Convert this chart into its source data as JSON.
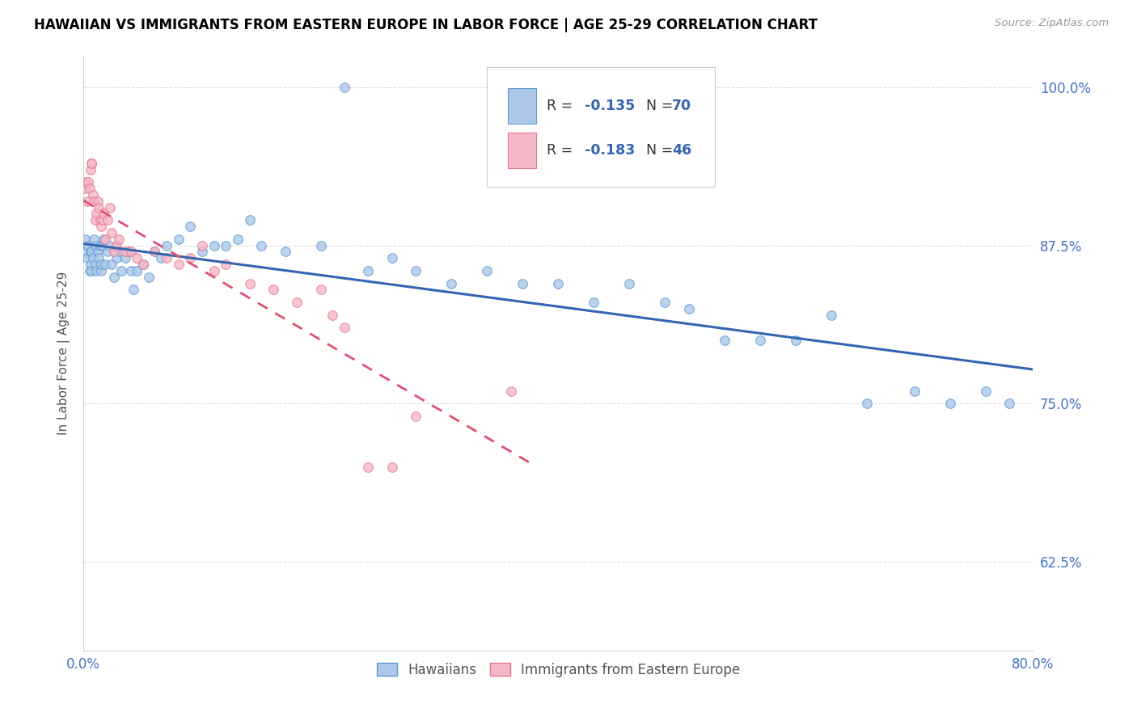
{
  "title": "HAWAIIAN VS IMMIGRANTS FROM EASTERN EUROPE IN LABOR FORCE | AGE 25-29 CORRELATION CHART",
  "source": "Source: ZipAtlas.com",
  "ylabel": "In Labor Force | Age 25-29",
  "xlim": [
    0.0,
    0.8
  ],
  "ylim": [
    0.555,
    1.025
  ],
  "xtick_positions": [
    0.0,
    0.1,
    0.2,
    0.3,
    0.4,
    0.5,
    0.6,
    0.7,
    0.8
  ],
  "xticklabels": [
    "0.0%",
    "",
    "",
    "",
    "",
    "",
    "",
    "",
    "80.0%"
  ],
  "ytick_positions": [
    0.625,
    0.75,
    0.875,
    1.0
  ],
  "ytick_labels": [
    "62.5%",
    "75.0%",
    "87.5%",
    "100.0%"
  ],
  "hawaiians_color": "#adc8e8",
  "eastern_europe_color": "#f5b8c8",
  "hawaiians_edge": "#5b9bd5",
  "eastern_europe_edge": "#e8758a",
  "regression_hawaii_color": "#3565b0",
  "regression_ee_color": "#e05070",
  "legend_R_hawaii": "-0.135",
  "legend_N_hawaii": "70",
  "legend_R_ee": "-0.183",
  "legend_N_ee": "46",
  "background_color": "#ffffff",
  "grid_color": "#dddddd",
  "axis_color": "#4472c4",
  "title_color": "#000000",
  "marker_size": 70,
  "hawaiians_x": [
    0.001,
    0.002,
    0.003,
    0.004,
    0.005,
    0.006,
    0.006,
    0.007,
    0.007,
    0.008,
    0.009,
    0.01,
    0.01,
    0.011,
    0.012,
    0.013,
    0.014,
    0.015,
    0.015,
    0.016,
    0.017,
    0.018,
    0.02,
    0.022,
    0.024,
    0.026,
    0.028,
    0.03,
    0.032,
    0.035,
    0.038,
    0.04,
    0.042,
    0.045,
    0.05,
    0.055,
    0.06,
    0.065,
    0.07,
    0.08,
    0.09,
    0.1,
    0.11,
    0.12,
    0.13,
    0.14,
    0.15,
    0.17,
    0.2,
    0.22,
    0.24,
    0.26,
    0.28,
    0.31,
    0.34,
    0.37,
    0.4,
    0.43,
    0.46,
    0.49,
    0.51,
    0.54,
    0.57,
    0.6,
    0.63,
    0.66,
    0.7,
    0.73,
    0.76,
    0.78
  ],
  "hawaiians_y": [
    0.88,
    0.87,
    0.865,
    0.875,
    0.855,
    0.87,
    0.86,
    0.87,
    0.855,
    0.865,
    0.88,
    0.875,
    0.86,
    0.855,
    0.87,
    0.865,
    0.875,
    0.855,
    0.86,
    0.875,
    0.88,
    0.86,
    0.87,
    0.875,
    0.86,
    0.85,
    0.865,
    0.87,
    0.855,
    0.865,
    0.87,
    0.855,
    0.84,
    0.855,
    0.86,
    0.85,
    0.87,
    0.865,
    0.875,
    0.88,
    0.89,
    0.87,
    0.875,
    0.875,
    0.88,
    0.895,
    0.875,
    0.87,
    0.875,
    1.0,
    0.855,
    0.865,
    0.855,
    0.845,
    0.855,
    0.845,
    0.845,
    0.83,
    0.845,
    0.83,
    0.825,
    0.8,
    0.8,
    0.8,
    0.82,
    0.75,
    0.76,
    0.75,
    0.76,
    0.75
  ],
  "eastern_europe_x": [
    0.001,
    0.002,
    0.003,
    0.004,
    0.005,
    0.006,
    0.007,
    0.007,
    0.008,
    0.009,
    0.01,
    0.011,
    0.012,
    0.013,
    0.014,
    0.015,
    0.016,
    0.017,
    0.018,
    0.02,
    0.022,
    0.024,
    0.026,
    0.028,
    0.03,
    0.035,
    0.04,
    0.045,
    0.05,
    0.06,
    0.07,
    0.08,
    0.09,
    0.1,
    0.11,
    0.12,
    0.14,
    0.16,
    0.18,
    0.2,
    0.21,
    0.22,
    0.24,
    0.26,
    0.28,
    0.36
  ],
  "eastern_europe_y": [
    0.92,
    0.925,
    0.91,
    0.925,
    0.92,
    0.935,
    0.94,
    0.94,
    0.915,
    0.91,
    0.895,
    0.9,
    0.91,
    0.905,
    0.895,
    0.89,
    0.895,
    0.9,
    0.88,
    0.895,
    0.905,
    0.885,
    0.87,
    0.875,
    0.88,
    0.87,
    0.87,
    0.865,
    0.86,
    0.87,
    0.865,
    0.86,
    0.865,
    0.875,
    0.855,
    0.86,
    0.845,
    0.84,
    0.83,
    0.84,
    0.82,
    0.81,
    0.7,
    0.7,
    0.74,
    0.76
  ]
}
